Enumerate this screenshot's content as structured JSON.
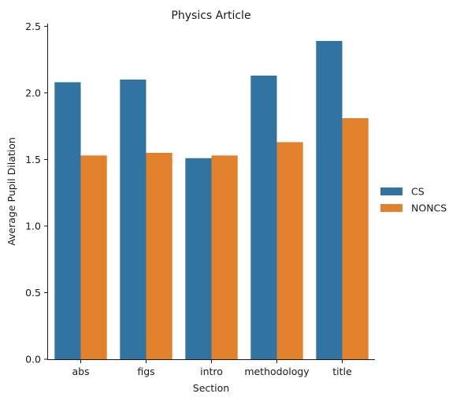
{
  "chart_data": {
    "type": "bar",
    "title": "Physics Article",
    "xlabel": "Section",
    "ylabel": "Average Pupil Dilation",
    "categories": [
      "abs",
      "figs",
      "intro",
      "methodology",
      "title"
    ],
    "series": [
      {
        "name": "CS",
        "color": "#3274a1",
        "values": [
          2.08,
          2.1,
          1.51,
          2.13,
          2.39
        ]
      },
      {
        "name": "NONCS",
        "color": "#e1812c",
        "values": [
          1.53,
          1.55,
          1.53,
          1.63,
          1.81
        ]
      }
    ],
    "ylim": [
      0,
      2.52
    ],
    "yticks": [
      "0.0",
      "0.5",
      "1.0",
      "1.5",
      "2.0",
      "2.5"
    ],
    "grid": false,
    "legend_position": "right"
  }
}
